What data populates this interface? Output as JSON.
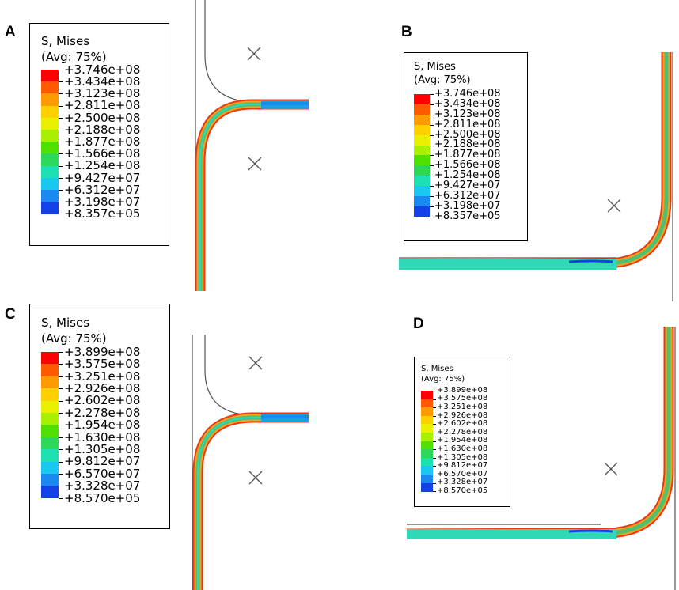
{
  "panels": [
    {
      "id": "A",
      "letter": "A",
      "legend": {
        "title_line1": "S, Mises",
        "title_line2": "(Avg: 75%)",
        "values": [
          "+3.746e+08",
          "+3.434e+08",
          "+3.123e+08",
          "+2.811e+08",
          "+2.500e+08",
          "+2.188e+08",
          "+1.877e+08",
          "+1.566e+08",
          "+1.254e+08",
          "+9.427e+07",
          "+6.312e+07",
          "+3.198e+07",
          "+8.357e+05"
        ]
      }
    },
    {
      "id": "B",
      "letter": "B",
      "legend": {
        "title_line1": "S, Mises",
        "title_line2": "(Avg: 75%)",
        "values": [
          "+3.746e+08",
          "+3.434e+08",
          "+3.123e+08",
          "+2.811e+08",
          "+2.500e+08",
          "+2.188e+08",
          "+1.877e+08",
          "+1.566e+08",
          "+1.254e+08",
          "+9.427e+07",
          "+6.312e+07",
          "+3.198e+07",
          "+8.357e+05"
        ]
      }
    },
    {
      "id": "C",
      "letter": "C",
      "legend": {
        "title_line1": "S, Mises",
        "title_line2": "(Avg: 75%)",
        "values": [
          "+3.899e+08",
          "+3.575e+08",
          "+3.251e+08",
          "+2.926e+08",
          "+2.602e+08",
          "+2.278e+08",
          "+1.954e+08",
          "+1.630e+08",
          "+1.305e+08",
          "+9.812e+07",
          "+6.570e+07",
          "+3.328e+07",
          "+8.570e+05"
        ]
      }
    },
    {
      "id": "D",
      "letter": "D",
      "legend": {
        "title_line1": "S, Mises",
        "title_line2": "(Avg: 75%)",
        "values": [
          "+3.899e+08",
          "+3.575e+08",
          "+3.251e+08",
          "+2.926e+08",
          "+2.602e+08",
          "+2.278e+08",
          "+1.954e+08",
          "+1.630e+08",
          "+1.305e+08",
          "+9.812e+07",
          "+6.570e+07",
          "+3.328e+07",
          "+8.570e+05"
        ]
      }
    }
  ],
  "colormap": [
    "#ff0000",
    "#ff5a00",
    "#ff9a00",
    "#ffd000",
    "#e8f000",
    "#a8f000",
    "#50e000",
    "#2cd85a",
    "#1de0b0",
    "#18c8f0",
    "#1a8af0",
    "#1440e8",
    "#0a00f0"
  ],
  "colors": {
    "tool_line": "#555555",
    "marker": "#555555",
    "band_outer": "#e83a10",
    "band_mid": "#f5a020",
    "band_inner": "#50c070",
    "band_core": "#30d8b8"
  }
}
